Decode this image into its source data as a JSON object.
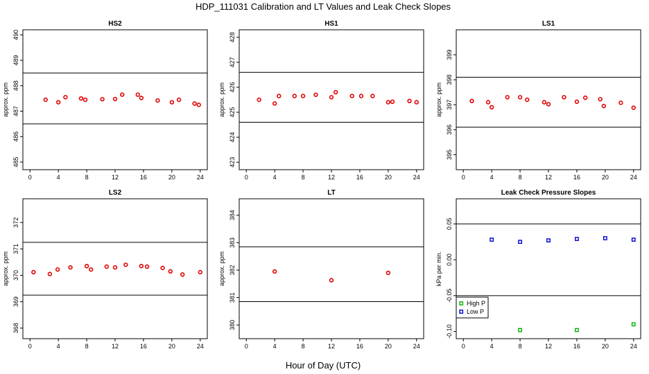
{
  "figure": {
    "title": "HDP_111031  Calibration and LT Values and Leak Check Slopes",
    "xlabel": "Hour of Day (UTC)"
  },
  "colors": {
    "cal": "#e00000",
    "high": "#00b000",
    "low": "#0000cc",
    "frame": "#000000"
  },
  "chart_data": [
    {
      "type": "scatter",
      "title": "HS2",
      "ylabel": "approx. ppm",
      "xlim": [
        -1,
        25
      ],
      "ylim": [
        484.7,
        490.2
      ],
      "xticks": [
        0,
        4,
        8,
        12,
        16,
        20,
        24
      ],
      "yticks": [
        485,
        486,
        487,
        488,
        489,
        490
      ],
      "hlines": [
        486.5,
        488.5
      ],
      "marker": "circle",
      "color": "#e00000",
      "x": [
        2.2,
        4.0,
        5.0,
        7.2,
        7.8,
        10.2,
        12.0,
        13.0,
        15.2,
        15.7,
        18.0,
        20.0,
        21.0,
        23.2,
        23.8
      ],
      "y": [
        487.45,
        487.35,
        487.55,
        487.5,
        487.45,
        487.47,
        487.48,
        487.65,
        487.65,
        487.52,
        487.42,
        487.35,
        487.45,
        487.3,
        487.25
      ]
    },
    {
      "type": "scatter",
      "title": "HS1",
      "ylabel": "approx. ppm",
      "xlim": [
        -1,
        25
      ],
      "ylim": [
        422.7,
        428.3
      ],
      "xticks": [
        0,
        4,
        8,
        12,
        16,
        20,
        24
      ],
      "yticks": [
        423,
        424,
        425,
        426,
        427,
        428
      ],
      "hlines": [
        424.6,
        426.6
      ],
      "marker": "circle",
      "color": "#e00000",
      "x": [
        1.8,
        4.0,
        4.6,
        6.8,
        8.0,
        9.8,
        12.0,
        12.6,
        14.9,
        16.2,
        17.8,
        20.0,
        20.6,
        23.0,
        24.0
      ],
      "y": [
        425.5,
        425.35,
        425.65,
        425.65,
        425.65,
        425.7,
        425.6,
        425.8,
        425.65,
        425.65,
        425.65,
        425.4,
        425.42,
        425.45,
        425.4
      ]
    },
    {
      "type": "scatter",
      "title": "LS1",
      "ylabel": "approx. ppm",
      "xlim": [
        -1,
        25
      ],
      "ylim": [
        394.4,
        400.0
      ],
      "xticks": [
        0,
        4,
        8,
        12,
        16,
        20,
        24
      ],
      "yticks": [
        395,
        396,
        397,
        398,
        399
      ],
      "hlines": [
        396.1,
        398.1
      ],
      "marker": "circle",
      "color": "#e00000",
      "x": [
        1.2,
        3.5,
        4.0,
        6.2,
        8.0,
        9.0,
        11.4,
        12.0,
        14.2,
        16.0,
        17.2,
        19.3,
        19.8,
        22.2,
        24.0
      ],
      "y": [
        397.15,
        397.1,
        396.9,
        397.3,
        397.3,
        397.2,
        397.1,
        397.02,
        397.3,
        397.12,
        397.28,
        397.22,
        396.95,
        397.08,
        396.88
      ]
    },
    {
      "type": "scatter",
      "title": "LS2",
      "ylabel": "approx. ppm",
      "xlim": [
        -1,
        25
      ],
      "ylim": [
        367.6,
        372.9
      ],
      "xticks": [
        0,
        4,
        8,
        12,
        16,
        20,
        24
      ],
      "yticks": [
        368,
        369,
        370,
        371,
        372
      ],
      "hlines": [
        369.25,
        371.25
      ],
      "marker": "circle",
      "color": "#e00000",
      "x": [
        0.5,
        2.8,
        3.9,
        5.7,
        8.0,
        8.6,
        10.8,
        12.0,
        13.5,
        15.7,
        16.5,
        18.7,
        19.8,
        21.5,
        24.0
      ],
      "y": [
        370.12,
        370.05,
        370.22,
        370.3,
        370.35,
        370.22,
        370.33,
        370.3,
        370.4,
        370.35,
        370.33,
        370.28,
        370.15,
        370.03,
        370.12
      ]
    },
    {
      "type": "scatter",
      "title": "LT",
      "ylabel": "approx. ppm",
      "xlim": [
        -1,
        25
      ],
      "ylim": [
        379.5,
        384.6
      ],
      "xticks": [
        0,
        4,
        8,
        12,
        16,
        20,
        24
      ],
      "yticks": [
        380,
        381,
        382,
        383,
        384
      ],
      "hlines": [
        380.85,
        382.85
      ],
      "marker": "circle",
      "color": "#e00000",
      "x": [
        4.0,
        12.0,
        20.0
      ],
      "y": [
        381.95,
        381.63,
        381.9
      ]
    },
    {
      "type": "scatter",
      "title": "Leak Check Pressure Slopes",
      "ylabel": "kPa per min.",
      "xlim": [
        -1,
        25
      ],
      "ylim": [
        -0.11,
        0.085
      ],
      "xticks": [
        0,
        4,
        8,
        12,
        16,
        20,
        24
      ],
      "yticks": [
        -0.1,
        -0.05,
        0.0,
        0.05
      ],
      "ytick_labels": [
        "-0.10",
        "-0.05",
        "0.00",
        "0.05"
      ],
      "hlines": [
        -0.05,
        0.05
      ],
      "legend_position": "bottom-left",
      "series": [
        {
          "name": "High P",
          "marker": "square",
          "color": "#00b000",
          "x": [
            8.0,
            16.0,
            24.0
          ],
          "y": [
            -0.098,
            -0.098,
            -0.09
          ]
        },
        {
          "name": "Low P",
          "marker": "square",
          "color": "#0000cc",
          "x": [
            4.0,
            8.0,
            12.0,
            16.0,
            20.0,
            24.0
          ],
          "y": [
            0.028,
            0.025,
            0.027,
            0.029,
            0.03,
            0.028
          ]
        }
      ]
    }
  ]
}
